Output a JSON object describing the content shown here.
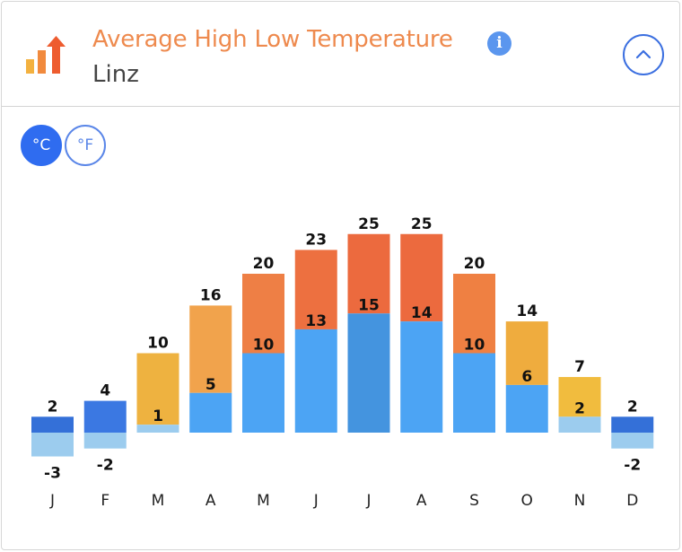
{
  "header": {
    "title": "Average High Low Temperature",
    "subtitle": "Linz",
    "info_icon": "info-icon",
    "collapse_icon": "chevron-up-icon",
    "logo_icon": "bar-chart-arrow-icon"
  },
  "units": {
    "celsius_label": "°C",
    "fahrenheit_label": "°F",
    "selected": "°C"
  },
  "chart_data": {
    "type": "bar",
    "categories": [
      "J",
      "F",
      "M",
      "A",
      "M",
      "J",
      "J",
      "A",
      "S",
      "O",
      "N",
      "D"
    ],
    "series": [
      {
        "values": [
          2,
          4,
          10,
          16,
          20,
          23,
          25,
          25,
          20,
          14,
          7,
          2
        ]
      },
      {
        "values": [
          -3,
          -2,
          1,
          5,
          10,
          13,
          15,
          14,
          10,
          6,
          2,
          -2
        ]
      }
    ],
    "high_colors": [
      "#3470d8",
      "#3b78e2",
      "#eeb240",
      "#f1a34c",
      "#ee7f45",
      "#ed7040",
      "#ec6a3e",
      "#ec6a3e",
      "#ef8042",
      "#efac3e",
      "#f1bc3e",
      "#3470d8"
    ],
    "low_colors": [
      "#9cccee",
      "#9cccee",
      "#9cccee",
      "#4ca4f4",
      "#4ca4f4",
      "#4ca4f4",
      "#4494df",
      "#4ca4f4",
      "#4ca4f4",
      "#4ca4f4",
      "#9cccee",
      "#9cccee"
    ],
    "grid": false,
    "legend": "none"
  }
}
